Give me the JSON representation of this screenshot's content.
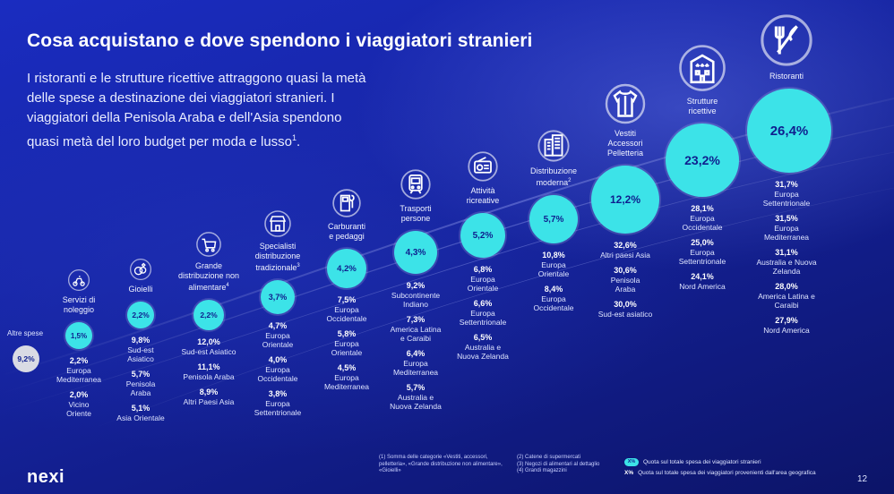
{
  "title": "Cosa acquistano e dove spendono i viaggiatori stranieri",
  "intro": {
    "text": "I ristoranti e le strutture ricettive attraggono quasi la metà delle spese a destinazione dei viaggiatori stranieri. I viaggiatori della Penisola Araba e dell'Asia spendono quasi metà del loro budget per moda e lusso",
    "sup": "1",
    "end": "."
  },
  "other": {
    "label": "Altre spese",
    "value": "9,2%"
  },
  "colors": {
    "accent": "#3ce3e8",
    "background": "#1726a8",
    "other": "#d9dbe4"
  },
  "chart_data": {
    "type": "bubble",
    "title": "Cosa acquistano e dove spendono i viaggiatori stranieri",
    "categories": [
      "Servizi di noleggio",
      "Gioielli",
      "Grande distribuzione non alimentare",
      "Specialisti distribuzione tradizionale",
      "Carburanti e pedaggi",
      "Trasporti persone",
      "Attività ricreative",
      "Distribuzione moderna",
      "Vestiti Accessori Pelletteria",
      "Strutture ricettive",
      "Ristoranti",
      "Altre spese"
    ],
    "values": [
      1.5,
      2.2,
      2.2,
      3.7,
      4.2,
      4.3,
      5.2,
      5.7,
      12.2,
      23.2,
      26.4,
      9.2
    ],
    "unit": "%"
  },
  "columns": [
    {
      "icon": "scooter-icon",
      "name": [
        "Servizi di",
        "noleggio"
      ],
      "sup": "",
      "value": "1,5%",
      "entries": [
        {
          "pct": "2,2%",
          "region": [
            "Europa",
            "Mediterranea"
          ]
        },
        {
          "pct": "2,0%",
          "region": [
            "Vicino",
            "Oriente"
          ]
        }
      ]
    },
    {
      "icon": "jewelry-icon",
      "name": [
        "Gioielli"
      ],
      "sup": "",
      "value": "2,2%",
      "entries": [
        {
          "pct": "9,8%",
          "region": [
            "Sud-est",
            "Asiatico"
          ]
        },
        {
          "pct": "5,7%",
          "region": [
            "Penisola",
            "Araba"
          ]
        },
        {
          "pct": "5,1%",
          "region": [
            "Asia Orientale"
          ]
        }
      ]
    },
    {
      "icon": "shopping-cart-icon",
      "name": [
        "Grande",
        "distribuzione non",
        "alimentare"
      ],
      "sup": "4",
      "value": "2,2%",
      "entries": [
        {
          "pct": "12,0%",
          "region": [
            "Sud-est Asiatico"
          ]
        },
        {
          "pct": "11,1%",
          "region": [
            "Penisola Araba"
          ]
        },
        {
          "pct": "8,9%",
          "region": [
            "Altri Paesi Asia"
          ]
        }
      ]
    },
    {
      "icon": "store-icon",
      "name": [
        "Specialisti",
        "distribuzione",
        "tradizionale"
      ],
      "sup": "3",
      "value": "3,7%",
      "entries": [
        {
          "pct": "4,7%",
          "region": [
            "Europa",
            "Orientale"
          ]
        },
        {
          "pct": "4,0%",
          "region": [
            "Europa",
            "Occidentale"
          ]
        },
        {
          "pct": "3,8%",
          "region": [
            "Europa",
            "Settentrionale"
          ]
        }
      ]
    },
    {
      "icon": "fuel-pump-icon",
      "name": [
        "Carburanti",
        "e pedaggi"
      ],
      "sup": "",
      "value": "4,2%",
      "entries": [
        {
          "pct": "7,5%",
          "region": [
            "Europa",
            "Occidentale"
          ]
        },
        {
          "pct": "5,8%",
          "region": [
            "Europa",
            "Orientale"
          ]
        },
        {
          "pct": "4,5%",
          "region": [
            "Europa",
            "Mediterranea"
          ]
        }
      ]
    },
    {
      "icon": "train-icon",
      "name": [
        "Trasporti",
        "persone"
      ],
      "sup": "",
      "value": "4,3%",
      "entries": [
        {
          "pct": "9,2%",
          "region": [
            "Subcontinente",
            "Indiano"
          ]
        },
        {
          "pct": "7,3%",
          "region": [
            "America Latina",
            "e Caraibi"
          ]
        },
        {
          "pct": "6,4%",
          "region": [
            "Europa",
            "Mediterranea"
          ]
        },
        {
          "pct": "5,7%",
          "region": [
            "Australia e",
            "Nuova Zelanda"
          ]
        }
      ]
    },
    {
      "icon": "radio-icon",
      "name": [
        "Attività",
        "ricreative"
      ],
      "sup": "",
      "value": "5,2%",
      "entries": [
        {
          "pct": "6,8%",
          "region": [
            "Europa",
            "Orientale"
          ]
        },
        {
          "pct": "6,6%",
          "region": [
            "Europa",
            "Settentrionale"
          ]
        },
        {
          "pct": "6,5%",
          "region": [
            "Australia e",
            "Nuova Zelanda"
          ]
        }
      ]
    },
    {
      "icon": "buildings-icon",
      "name": [
        "Distribuzione",
        "moderna"
      ],
      "sup": "2",
      "value": "5,7%",
      "entries": [
        {
          "pct": "10,8%",
          "region": [
            "Europa",
            "Orientale"
          ]
        },
        {
          "pct": "8,4%",
          "region": [
            "Europa",
            "Occidentale"
          ]
        }
      ]
    },
    {
      "icon": "shirt-icon",
      "name": [
        "Vestiti",
        "Accessori",
        "Pelletteria"
      ],
      "sup": "",
      "value": "12,2%",
      "entries": [
        {
          "pct": "32,6%",
          "region": [
            "Altri paesi Asia"
          ]
        },
        {
          "pct": "30,6%",
          "region": [
            "Penisola",
            "Araba"
          ]
        },
        {
          "pct": "30,0%",
          "region": [
            "Sud-est asiatico"
          ]
        }
      ]
    },
    {
      "icon": "hotel-icon",
      "name": [
        "Strutture",
        "ricettive"
      ],
      "sup": "",
      "value": "23,2%",
      "entries": [
        {
          "pct": "28,1%",
          "region": [
            "Europa",
            "Occidentale"
          ]
        },
        {
          "pct": "25,0%",
          "region": [
            "Europa",
            "Settentrionale"
          ]
        },
        {
          "pct": "24,1%",
          "region": [
            "Nord America"
          ]
        }
      ]
    },
    {
      "icon": "cutlery-icon",
      "name": [
        "Ristoranti"
      ],
      "sup": "",
      "value": "26,4%",
      "entries": [
        {
          "pct": "31,7%",
          "region": [
            "Europa",
            "Settentrionale"
          ]
        },
        {
          "pct": "31,5%",
          "region": [
            "Europa",
            "Mediterranea"
          ]
        },
        {
          "pct": "31,1%",
          "region": [
            "Australia e Nuova",
            "Zelanda"
          ]
        },
        {
          "pct": "28,0%",
          "region": [
            "America Latina e",
            "Caraibi"
          ]
        },
        {
          "pct": "27,9%",
          "region": [
            "Nord America"
          ]
        }
      ]
    }
  ],
  "footer": {
    "logo": "nexi",
    "notes": [
      [
        "(1) Somma delle categorie «Vestiti, accessori,",
        "pelletteria», «Grande distribuzione non alimentare»,",
        "«Gioielli»"
      ],
      [
        "(2) Catene di supermercati",
        "(3) Negozi di alimentari al dettaglio",
        "(4) Grandi magazzini"
      ]
    ],
    "legend": [
      {
        "chip": "X%",
        "text": "Quota sul totale spesa dei viaggiatori stranieri"
      },
      {
        "bold": "X%",
        "text": "Quota sul totale spesa dei viaggiatori provenienti dall'area geografica"
      }
    ],
    "page": "12"
  }
}
